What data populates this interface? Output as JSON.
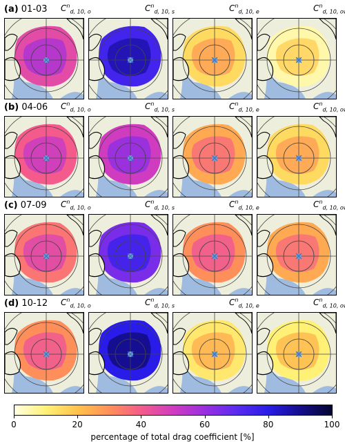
{
  "rows": [
    {
      "letter": "(a)",
      "months": "01-03"
    },
    {
      "letter": "(b)",
      "months": "04-06"
    },
    {
      "letter": "(c)",
      "months": "07-09"
    },
    {
      "letter": "(d)",
      "months": "10-12"
    }
  ],
  "columns": [
    {
      "base": "C",
      "sup": "n",
      "sub": "d, 10, o"
    },
    {
      "base": "C",
      "sup": "n",
      "sub": "d, 10, s"
    },
    {
      "base": "C",
      "sup": "n",
      "sub": "d, 10, e"
    },
    {
      "base": "C",
      "sup": "n",
      "sub": "d, 10, ow"
    }
  ],
  "panel_levels": [
    [
      0.45,
      0.75,
      0.15,
      0.05
    ],
    [
      0.4,
      0.5,
      0.25,
      0.15
    ],
    [
      0.35,
      0.65,
      0.3,
      0.25
    ],
    [
      0.3,
      0.8,
      0.12,
      0.1
    ]
  ],
  "colors": {
    "land": "#eeeedc",
    "ocean": "#9fbbe0",
    "coast": "#000000",
    "grid": "#444444",
    "pole": "#6a9bd8"
  },
  "colorbar": {
    "ticks": [
      "0",
      "20",
      "40",
      "60",
      "80",
      "100"
    ],
    "range": [
      0,
      100
    ],
    "label": "percentage of total drag coefficient [%]"
  }
}
